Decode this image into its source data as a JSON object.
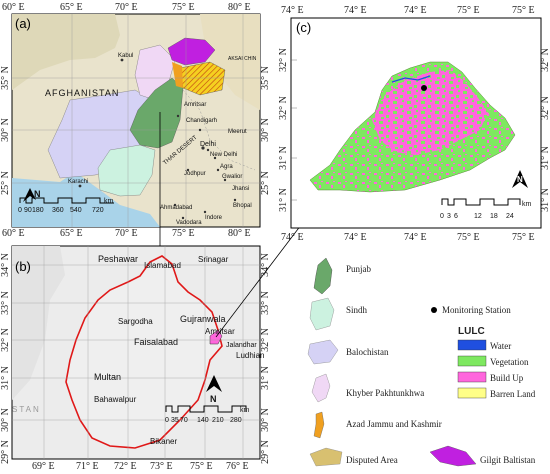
{
  "panel_a": {
    "letter": "(a)",
    "top_ticks": [
      "60° E",
      "65° E",
      "70° E",
      "75° E",
      "80° E"
    ],
    "bottom_ticks": [
      "60° E",
      "65° E",
      "70° E",
      "75° E",
      "80° E"
    ],
    "left_ticks": [
      "35° N",
      "30° N",
      "25° N"
    ],
    "right_ticks": [
      "35° N",
      "30° N",
      "25° N"
    ],
    "places": [
      "AFGHANISTAN",
      "Kabul",
      "Delhi",
      "New Delhi",
      "Amritsar",
      "Chandigarh",
      "Meerut",
      "Agra",
      "Gwalior",
      "Jhansi",
      "Jodhpur",
      "Ahmadabad",
      "Indore",
      "Bhopal",
      "Vadodara",
      "Karachi",
      "THAR DESERT",
      "AKSAI CHIN"
    ],
    "north": "N",
    "scale_labels": [
      "0",
      "90",
      "180",
      "360",
      "540",
      "720"
    ],
    "scale_unit": "km"
  },
  "panel_b": {
    "letter": "(b)",
    "bottom_ticks": [
      "69° E",
      "71° E",
      "72° E",
      "73° E",
      "75° E",
      "76° E"
    ],
    "left_ticks": [
      "34° N",
      "33° N",
      "32° N",
      "31° N",
      "30° N",
      "29° N"
    ],
    "right_ticks": [
      "34° N",
      "33° N",
      "32° N",
      "31° N",
      "30° N",
      "29° N"
    ],
    "places": [
      "Peshawar",
      "Islamabad",
      "Srinagar",
      "Sargodha",
      "Gujranwala",
      "Faisalabad",
      "Amritsar",
      "Jalandhar",
      "Ludhian",
      "Multan",
      "Bahawalpur",
      "Bikaner",
      "STAN"
    ],
    "north": "N",
    "scale_labels": [
      "0",
      "35",
      "70",
      "140",
      "210",
      "280"
    ],
    "scale_unit": "km"
  },
  "panel_c": {
    "letter": "(c)",
    "top_ticks": [
      "74° E",
      "74° E",
      "74° E",
      "75° E",
      "75° E"
    ],
    "bottom_ticks": [
      "74° E",
      "74° E",
      "74° E",
      "75° E",
      "75° E"
    ],
    "left_ticks": [
      "32° N",
      "32° N",
      "31° N",
      "31° N"
    ],
    "right_ticks": [
      "32° N",
      "32° N",
      "31° N",
      "31° N"
    ],
    "north": "N",
    "scale_labels": [
      "0",
      "3",
      "6",
      "12",
      "18",
      "24"
    ],
    "scale_unit": "km"
  },
  "legend_regions": [
    {
      "label": "Punjab",
      "color": "#6aa86a"
    },
    {
      "label": "Sindh",
      "color": "#ccf2e0"
    },
    {
      "label": "Balochistan",
      "color": "#d5d2f5"
    },
    {
      "label": "Khyber Pakhtunkhwa",
      "color": "#f0d8f5"
    },
    {
      "label": "Azad Jammu and Kashmir",
      "color": "#f0a020"
    },
    {
      "label": "Disputed Area",
      "color": "#d8c070"
    },
    {
      "label": "Gilgit Baltistan",
      "color": "#c020e0"
    }
  ],
  "monitoring_station": "Monitoring Station",
  "lulc": {
    "title": "LULC",
    "classes": [
      {
        "label": "Water",
        "color": "#1f4fe0"
      },
      {
        "label": "Vegetation",
        "color": "#7ee860"
      },
      {
        "label": "Build Up",
        "color": "#ff66dd"
      },
      {
        "label": "Barren Land",
        "color": "#ffff88"
      }
    ]
  }
}
